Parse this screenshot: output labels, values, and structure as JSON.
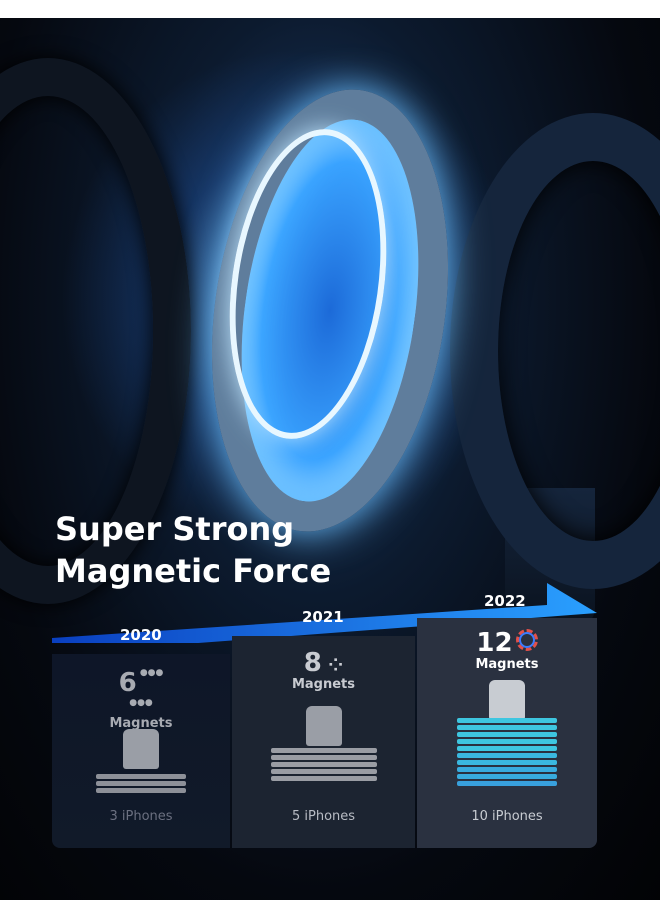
{
  "headline": {
    "line1": "Super Strong",
    "line2": "Magnetic Force"
  },
  "colors": {
    "accent": "#1f8bf0",
    "timeline_dark": "#0a46c8",
    "cyan_phone": "#3ec6e0",
    "grey_phone": "#8d9098"
  },
  "tiers": [
    {
      "year": "2020",
      "count": "6",
      "unit": "Magnets",
      "capacity": "3 iPhones",
      "magnet_icon": "sn-pole-magnets-icon",
      "phones": 3
    },
    {
      "year": "2021",
      "count": "8",
      "unit": "Magnets",
      "capacity": "5 iPhones",
      "magnet_icon": "dot-ring-icon",
      "phones": 5
    },
    {
      "year": "2022",
      "count": "12",
      "unit": "Magnets",
      "capacity": "10 iPhones",
      "magnet_icon": "segmented-ring-icon",
      "phones": 10
    }
  ]
}
